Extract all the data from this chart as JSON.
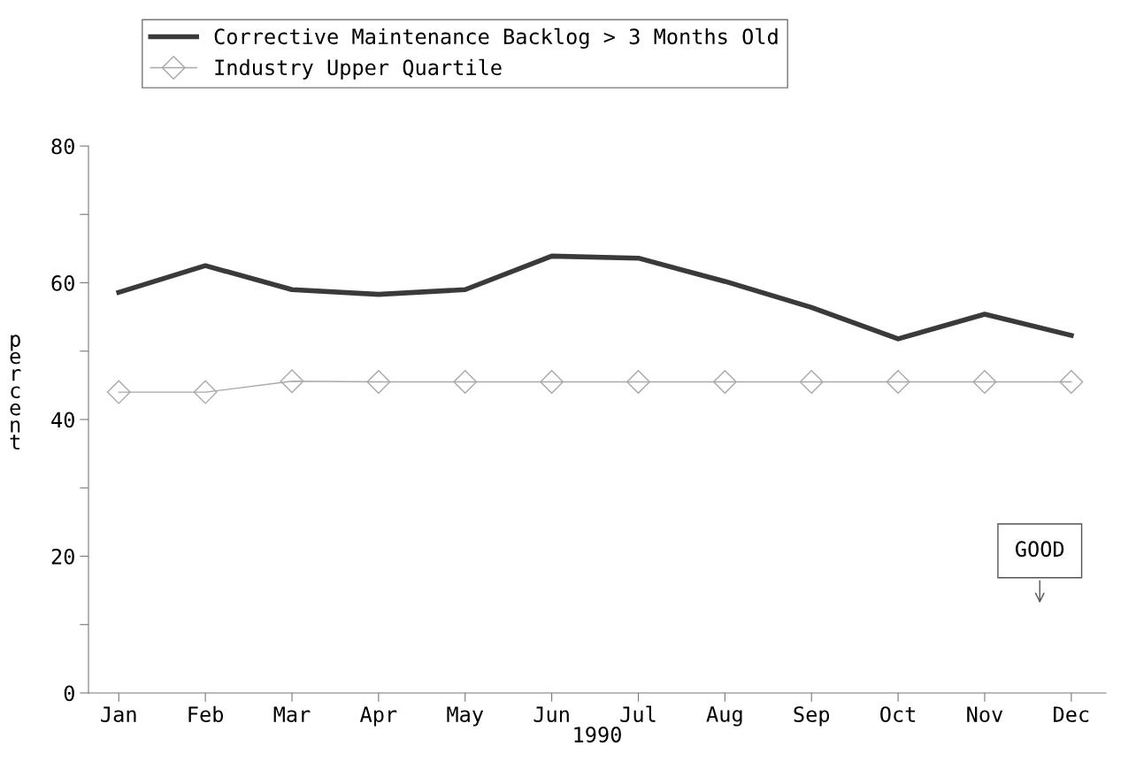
{
  "chart_data": {
    "type": "line",
    "categories": [
      "Jan",
      "Feb",
      "Mar",
      "Apr",
      "May",
      "Jun",
      "Jul",
      "Aug",
      "Sep",
      "Oct",
      "Nov",
      "Dec"
    ],
    "series": [
      {
        "name": "Corrective Maintenance Backlog > 3 Months Old",
        "color": "#3a3a3a",
        "marker": "none",
        "values": [
          58.6,
          62.5,
          59.0,
          58.3,
          59.0,
          63.9,
          63.6,
          60.2,
          56.4,
          51.8,
          55.4,
          52.3
        ]
      },
      {
        "name": "Industry Upper Quartile",
        "color": "#a8a8a8",
        "marker": "diamond",
        "values": [
          44.0,
          44.0,
          45.6,
          45.5,
          45.5,
          45.5,
          45.5,
          45.5,
          45.5,
          45.5,
          45.5,
          45.5
        ]
      }
    ],
    "ylim": [
      0,
      80
    ],
    "yticks": [
      0,
      {
        "value": 10,
        "label": null
      },
      20,
      {
        "value": 30,
        "label": null
      },
      40,
      {
        "value": 50,
        "label": null
      },
      60,
      {
        "value": 70,
        "label": null
      },
      80
    ],
    "xlabel": "1990",
    "ylabel": "percent",
    "annotations": [
      "GOOD"
    ],
    "legend": "top",
    "grid": false
  }
}
